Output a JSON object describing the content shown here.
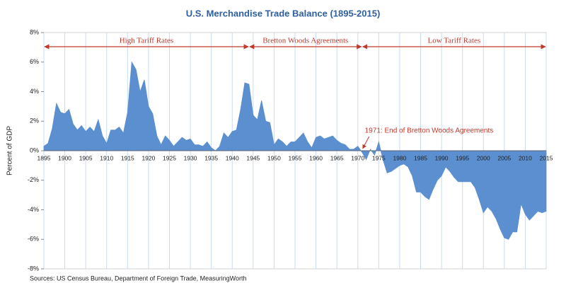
{
  "chart_data": {
    "type": "area",
    "title": "U.S. Merchandise Trade Balance (1895-2015)",
    "y_label": "Percent of GDP",
    "source": "Sources: US Census Bureau, Department of Foreign Trade, MeasuringWorth",
    "color": "#5b8fcf",
    "grid": true,
    "x": [
      1895,
      1896,
      1897,
      1898,
      1899,
      1900,
      1901,
      1902,
      1903,
      1904,
      1905,
      1906,
      1907,
      1908,
      1909,
      1910,
      1911,
      1912,
      1913,
      1914,
      1915,
      1916,
      1917,
      1918,
      1919,
      1920,
      1921,
      1922,
      1923,
      1924,
      1925,
      1926,
      1927,
      1928,
      1929,
      1930,
      1931,
      1932,
      1933,
      1934,
      1935,
      1936,
      1937,
      1938,
      1939,
      1940,
      1941,
      1942,
      1943,
      1944,
      1945,
      1946,
      1947,
      1948,
      1949,
      1950,
      1951,
      1952,
      1953,
      1954,
      1955,
      1956,
      1957,
      1958,
      1959,
      1960,
      1961,
      1962,
      1963,
      1964,
      1965,
      1966,
      1967,
      1968,
      1969,
      1970,
      1971,
      1972,
      1973,
      1974,
      1975,
      1976,
      1977,
      1978,
      1979,
      1980,
      1981,
      1982,
      1983,
      1984,
      1985,
      1986,
      1987,
      1988,
      1989,
      1990,
      1991,
      1992,
      1993,
      1994,
      1995,
      1996,
      1997,
      1998,
      1999,
      2000,
      2001,
      2002,
      2003,
      2004,
      2005,
      2006,
      2007,
      2008,
      2009,
      2010,
      2011,
      2012,
      2013,
      2014,
      2015
    ],
    "values": [
      0.3,
      0.5,
      1.5,
      3.2,
      2.6,
      2.5,
      2.8,
      1.8,
      1.4,
      1.7,
      1.3,
      1.6,
      1.3,
      2.1,
      1.0,
      0.5,
      1.4,
      1.4,
      1.6,
      1.2,
      2.6,
      6.0,
      5.5,
      4.0,
      4.8,
      3.0,
      2.5,
      1.0,
      0.4,
      1.0,
      0.7,
      0.3,
      0.6,
      0.9,
      0.7,
      0.8,
      0.4,
      0.4,
      0.3,
      0.6,
      0.2,
      0.0,
      0.3,
      1.2,
      0.9,
      1.3,
      1.4,
      2.8,
      4.6,
      4.5,
      2.4,
      2.1,
      3.4,
      2.0,
      1.9,
      0.4,
      0.8,
      0.6,
      0.3,
      0.6,
      0.6,
      0.9,
      1.2,
      0.6,
      0.2,
      0.9,
      1.0,
      0.8,
      0.9,
      1.0,
      0.7,
      0.5,
      0.4,
      0.1,
      0.1,
      0.3,
      -0.1,
      -0.6,
      0.1,
      -0.3,
      0.6,
      -0.6,
      -1.5,
      -1.4,
      -1.2,
      -1.0,
      -0.9,
      -1.1,
      -1.7,
      -2.8,
      -2.8,
      -3.1,
      -3.3,
      -2.6,
      -2.0,
      -1.7,
      -1.1,
      -1.4,
      -1.8,
      -2.1,
      -2.1,
      -2.1,
      -2.1,
      -2.5,
      -3.3,
      -4.2,
      -3.8,
      -4.1,
      -4.6,
      -5.3,
      -5.9,
      -6.0,
      -5.5,
      -5.5,
      -3.6,
      -4.3,
      -4.7,
      -4.4,
      -4.1,
      -4.2,
      -4.1
    ],
    "xlim": [
      1895,
      2015
    ],
    "xticks": [
      1895,
      1900,
      1905,
      1910,
      1915,
      1920,
      1925,
      1930,
      1935,
      1940,
      1945,
      1950,
      1955,
      1960,
      1965,
      1970,
      1975,
      1980,
      1985,
      1990,
      1995,
      2000,
      2005,
      2010,
      2015
    ],
    "ylim": [
      -8,
      8
    ],
    "yticks": [
      {
        "value": -8,
        "label": "-8%"
      },
      {
        "value": -6,
        "label": "-6%"
      },
      {
        "value": -4,
        "label": "-4%"
      },
      {
        "value": -2,
        "label": "-2%"
      },
      {
        "value": 0,
        "label": "0%"
      },
      {
        "value": 2,
        "label": "2%"
      },
      {
        "value": 4,
        "label": "4%"
      },
      {
        "value": 6,
        "label": "6%"
      },
      {
        "value": 8,
        "label": "8%"
      }
    ],
    "periods": [
      {
        "text": "High Tariff Rates",
        "start": 1895,
        "end": 1944
      },
      {
        "text": "Bretton Woods Agreements",
        "start": 1944,
        "end": 1971
      },
      {
        "text": "Low Tariff Rates",
        "start": 1971,
        "end": 2015
      }
    ],
    "annotation": {
      "text": "1971: End of Bretton Woods Agreements",
      "x": 1971,
      "y": 0
    }
  }
}
